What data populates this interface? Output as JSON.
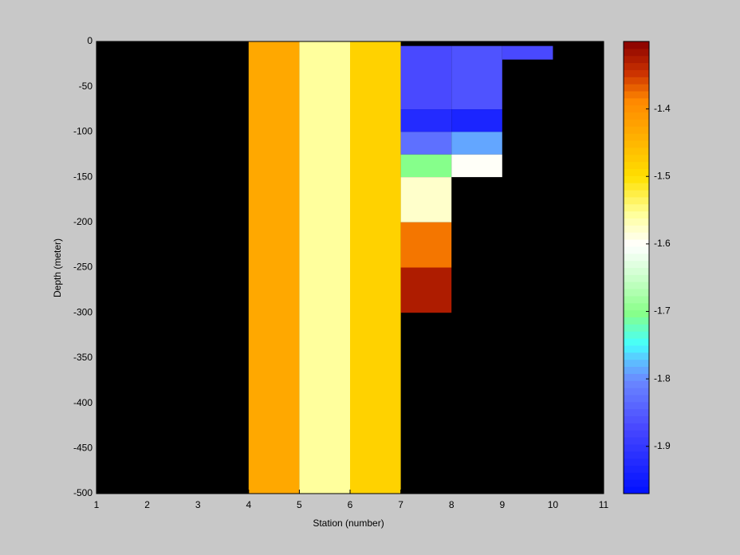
{
  "chart_data": {
    "type": "heatmap",
    "xlabel": "Station (number)",
    "ylabel": "Depth (meter)",
    "xlim": [
      1,
      11
    ],
    "xticks": [
      1,
      2,
      3,
      4,
      5,
      6,
      7,
      8,
      9,
      10,
      11
    ],
    "ylim": [
      -500,
      0
    ],
    "yticks": [
      0,
      -50,
      -100,
      -150,
      -200,
      -250,
      -300,
      -350,
      -400,
      -450,
      -500
    ],
    "background_color": "#000000",
    "clim": [
      -1.97,
      -1.3
    ],
    "cticks": [
      -1.4,
      -1.5,
      -1.6,
      -1.7,
      -1.8,
      -1.9
    ],
    "colormap": [
      [
        0,
        "#0010ff"
      ],
      [
        0.15,
        "#4a4aff"
      ],
      [
        0.25,
        "#6a88ff"
      ],
      [
        0.3,
        "#5ac8ff"
      ],
      [
        0.33,
        "#44ffff"
      ],
      [
        0.4,
        "#88ff88"
      ],
      [
        0.48,
        "#ccffcc"
      ],
      [
        0.55,
        "#ffffff"
      ],
      [
        0.62,
        "#ffff99"
      ],
      [
        0.7,
        "#ffe000"
      ],
      [
        0.8,
        "#ffaa00"
      ],
      [
        0.87,
        "#ff8800"
      ],
      [
        0.93,
        "#cc3300"
      ],
      [
        1,
        "#880000"
      ]
    ],
    "cells": [
      {
        "x": [
          4,
          5
        ],
        "y": [
          0,
          -500
        ],
        "value": -1.43
      },
      {
        "x": [
          5,
          6
        ],
        "y": [
          0,
          -500
        ],
        "value": -1.56
      },
      {
        "x": [
          6,
          7
        ],
        "y": [
          0,
          -500
        ],
        "value": -1.48
      },
      {
        "x": [
          7,
          8
        ],
        "y": [
          -5,
          -75
        ],
        "value": -1.87
      },
      {
        "x": [
          7,
          8
        ],
        "y": [
          -75,
          -100
        ],
        "value": -1.92
      },
      {
        "x": [
          7,
          8
        ],
        "y": [
          -100,
          -125
        ],
        "value": -1.83
      },
      {
        "x": [
          7,
          8
        ],
        "y": [
          -125,
          -150
        ],
        "value": -1.7
      },
      {
        "x": [
          7,
          8
        ],
        "y": [
          -150,
          -200
        ],
        "value": -1.58
      },
      {
        "x": [
          7,
          8
        ],
        "y": [
          -200,
          -250
        ],
        "value": -1.38
      },
      {
        "x": [
          7,
          8
        ],
        "y": [
          -250,
          -300
        ],
        "value": -1.33
      },
      {
        "x": [
          8,
          9
        ],
        "y": [
          -5,
          -75
        ],
        "value": -1.86
      },
      {
        "x": [
          8,
          9
        ],
        "y": [
          -75,
          -100
        ],
        "value": -1.93
      },
      {
        "x": [
          8,
          9
        ],
        "y": [
          -100,
          -125
        ],
        "value": -1.79
      },
      {
        "x": [
          8,
          9
        ],
        "y": [
          -125,
          -150
        ],
        "value": -1.6
      },
      {
        "x": [
          9,
          10
        ],
        "y": [
          -5,
          -20
        ],
        "value": -1.87
      }
    ]
  }
}
